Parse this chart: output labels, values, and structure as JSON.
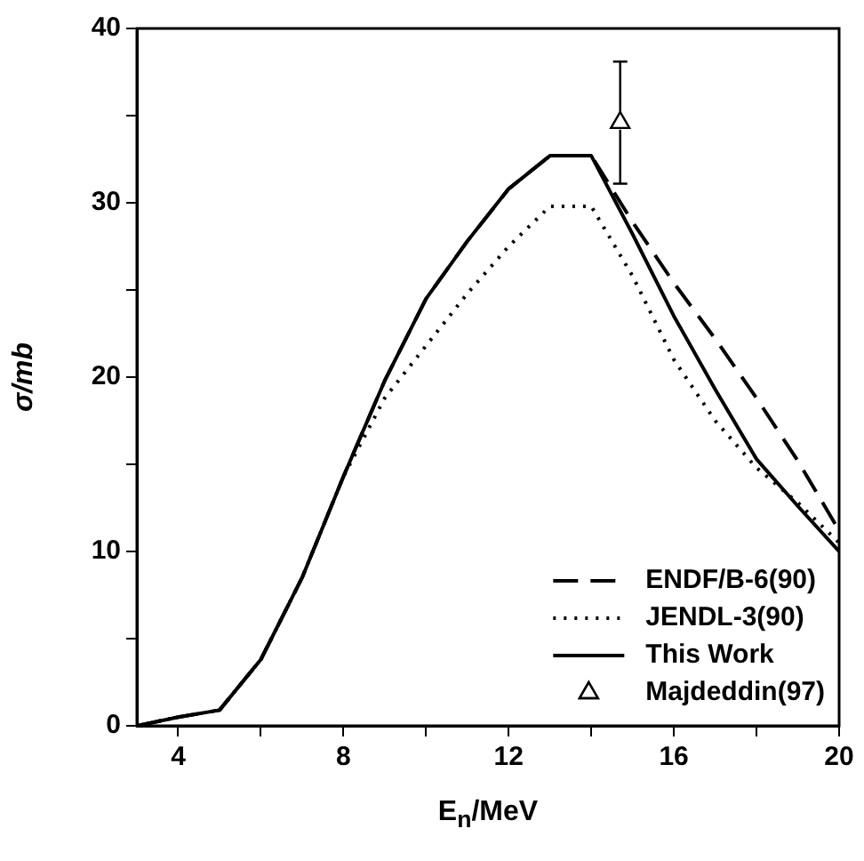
{
  "chart_data": {
    "type": "line",
    "xlabel": "E$_{n}$/MeV",
    "ylabel": "σ/mb",
    "x": [
      3,
      4,
      5,
      6,
      7,
      8,
      9,
      10,
      11,
      12,
      13,
      14,
      15,
      16,
      17,
      18,
      19,
      20
    ],
    "xlim": [
      3,
      20
    ],
    "xticks": [
      4,
      {
        "value": 6,
        "label": null
      },
      8,
      {
        "value": 10,
        "label": null
      },
      12,
      {
        "value": 14,
        "label": null
      },
      16,
      {
        "value": 18,
        "label": null
      },
      20
    ],
    "ylim": [
      0,
      40
    ],
    "yticks": [
      0,
      {
        "value": 5,
        "label": null
      },
      10,
      {
        "value": 15,
        "label": null
      },
      20,
      {
        "value": 25,
        "label": null
      },
      30,
      {
        "value": 35,
        "label": null
      },
      40
    ],
    "grid": false,
    "legend": "bottom right",
    "marker": "none",
    "series": [
      {
        "name": "ENDF/B-6(90)",
        "color": "#000000",
        "line_style": "dashed",
        "values": [
          0,
          0.5,
          0.9,
          3.8,
          8.5,
          14.3,
          19.8,
          24.5,
          27.8,
          30.8,
          32.7,
          32.7,
          28.9,
          25.4,
          22.2,
          18.8,
          15.2,
          11.2
        ]
      },
      {
        "name": "JENDL-3(90)",
        "color": "#000000",
        "line_style": "dotted",
        "values": [
          0,
          0.5,
          0.9,
          3.8,
          8.5,
          14.3,
          18.8,
          21.8,
          24.8,
          27.5,
          29.8,
          29.8,
          25.8,
          21,
          17.5,
          14.8,
          12.8,
          10.5
        ]
      },
      {
        "name": "This Work",
        "color": "#000000",
        "line_style": "solid",
        "values": [
          0,
          0.5,
          0.9,
          3.8,
          8.5,
          14.3,
          19.8,
          24.5,
          27.8,
          30.8,
          32.7,
          32.7,
          28.2,
          23.5,
          19.3,
          15.3,
          12.6,
          10
        ]
      },
      {
        "name": "Majdeddin(97)",
        "type": "scatter",
        "marker": "triangle",
        "color": "#000000",
        "x": [
          14.7
        ],
        "values": [
          34.6
        ],
        "errors": [
          3.5
        ]
      }
    ]
  }
}
